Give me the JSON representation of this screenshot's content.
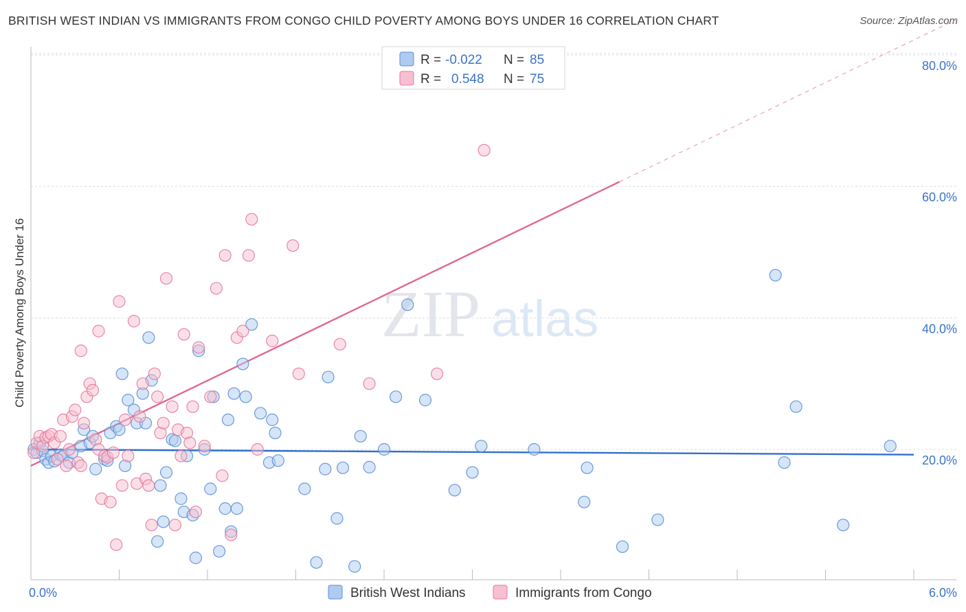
{
  "header": {
    "title": "BRITISH WEST INDIAN VS IMMIGRANTS FROM CONGO CHILD POVERTY AMONG BOYS UNDER 16 CORRELATION CHART",
    "source": "Source: ZipAtlas.com"
  },
  "watermark": {
    "zip": "ZIP",
    "atlas": "atlas"
  },
  "legend": {
    "r_label": "R =",
    "n_label": "N =",
    "rows": [
      {
        "r": "-0.022",
        "n": "85",
        "color": "#aecbf0"
      },
      {
        "r": "0.548",
        "n": "75",
        "color": "#f7bfd0"
      }
    ]
  },
  "bottom_legend": {
    "items": [
      {
        "label": "British West Indians",
        "color": "#aecbf0"
      },
      {
        "label": "Immigrants from Congo",
        "color": "#f7bfd0"
      }
    ]
  },
  "chart_data": {
    "type": "scatter",
    "title": "BRITISH WEST INDIAN VS IMMIGRANTS FROM CONGO CHILD POVERTY AMONG BOYS UNDER 16 CORRELATION CHART",
    "xlabel": "",
    "ylabel": "Child Poverty Among Boys Under 16",
    "xlim": [
      0,
      6.3
    ],
    "ylim": [
      0,
      82
    ],
    "x_tick_labels": [
      {
        "value": 0,
        "label": "0.0%"
      },
      {
        "value": 6.0,
        "label": "6.0%"
      }
    ],
    "y_tick_labels": [
      {
        "value": 20,
        "label": "20.0%"
      },
      {
        "value": 40,
        "label": "40.0%"
      },
      {
        "value": 60,
        "label": "60.0%"
      },
      {
        "value": 80,
        "label": "80.0%"
      }
    ],
    "x_minor_ticks": [
      0.6,
      1.2,
      1.8,
      2.4,
      3.0,
      3.6,
      4.2,
      4.8,
      5.4,
      6.0
    ],
    "grid": true,
    "series": [
      {
        "name": "British West Indians",
        "color": "#aecbf0",
        "stroke": "#5b8fd6",
        "trend": {
          "x": [
            0,
            6.0
          ],
          "y": [
            20.0,
            19.2
          ],
          "color": "#2f6fcc"
        },
        "points": [
          [
            0.02,
            20.0
          ],
          [
            0.04,
            19.5
          ],
          [
            0.06,
            21.0
          ],
          [
            0.08,
            19.8
          ],
          [
            0.1,
            18.5
          ],
          [
            0.12,
            18.0
          ],
          [
            0.14,
            19.0
          ],
          [
            0.16,
            18.2
          ],
          [
            0.2,
            19.2
          ],
          [
            0.22,
            19.0
          ],
          [
            0.26,
            18.0
          ],
          [
            0.28,
            19.5
          ],
          [
            0.34,
            20.5
          ],
          [
            0.36,
            23.0
          ],
          [
            0.4,
            21.0
          ],
          [
            0.42,
            22.0
          ],
          [
            0.44,
            17.0
          ],
          [
            0.5,
            18.5
          ],
          [
            0.52,
            18.3
          ],
          [
            0.54,
            22.5
          ],
          [
            0.58,
            23.5
          ],
          [
            0.6,
            23.0
          ],
          [
            0.62,
            31.5
          ],
          [
            0.64,
            17.5
          ],
          [
            0.66,
            27.5
          ],
          [
            0.7,
            26.0
          ],
          [
            0.72,
            24.0
          ],
          [
            0.76,
            28.5
          ],
          [
            0.78,
            24.0
          ],
          [
            0.8,
            37.0
          ],
          [
            0.82,
            30.5
          ],
          [
            0.86,
            6.0
          ],
          [
            0.88,
            14.5
          ],
          [
            0.9,
            9.0
          ],
          [
            0.92,
            16.5
          ],
          [
            0.96,
            21.5
          ],
          [
            0.98,
            21.3
          ],
          [
            1.02,
            12.5
          ],
          [
            1.04,
            10.5
          ],
          [
            1.06,
            19.0
          ],
          [
            1.1,
            10.0
          ],
          [
            1.12,
            3.5
          ],
          [
            1.14,
            35.0
          ],
          [
            1.18,
            20.0
          ],
          [
            1.22,
            14.0
          ],
          [
            1.24,
            28.0
          ],
          [
            1.28,
            4.5
          ],
          [
            1.32,
            11.0
          ],
          [
            1.34,
            24.5
          ],
          [
            1.36,
            7.5
          ],
          [
            1.38,
            28.5
          ],
          [
            1.4,
            11.0
          ],
          [
            1.44,
            33.0
          ],
          [
            1.46,
            28.0
          ],
          [
            1.5,
            39.0
          ],
          [
            1.56,
            25.5
          ],
          [
            1.62,
            18.0
          ],
          [
            1.64,
            24.5
          ],
          [
            1.66,
            22.5
          ],
          [
            1.68,
            18.3
          ],
          [
            1.86,
            14.0
          ],
          [
            1.94,
            2.8
          ],
          [
            2.0,
            17.0
          ],
          [
            2.02,
            31.0
          ],
          [
            2.08,
            9.5
          ],
          [
            2.12,
            17.2
          ],
          [
            2.2,
            2.2
          ],
          [
            2.24,
            22.0
          ],
          [
            2.3,
            17.3
          ],
          [
            2.4,
            20.0
          ],
          [
            2.48,
            28.0
          ],
          [
            2.56,
            42.0
          ],
          [
            2.68,
            27.5
          ],
          [
            2.88,
            13.8
          ],
          [
            3.0,
            16.5
          ],
          [
            3.06,
            20.5
          ],
          [
            3.42,
            20.0
          ],
          [
            3.76,
            12.0
          ],
          [
            3.78,
            17.2
          ],
          [
            4.02,
            5.2
          ],
          [
            4.26,
            9.3
          ],
          [
            5.06,
            46.5
          ],
          [
            5.12,
            18.0
          ],
          [
            5.2,
            26.5
          ],
          [
            5.52,
            8.5
          ],
          [
            5.84,
            20.5
          ]
        ]
      },
      {
        "name": "Immigrants from Congo",
        "color": "#f7bfd0",
        "stroke": "#e37a9c",
        "trend": {
          "x": [
            0,
            4.0
          ],
          "y": [
            17.5,
            60.7
          ],
          "color": "#e06690"
        },
        "trend_dash": {
          "x": [
            4.0,
            6.3
          ],
          "y": [
            60.7,
            85.5
          ]
        },
        "points": [
          [
            0.02,
            19.5
          ],
          [
            0.04,
            21.0
          ],
          [
            0.06,
            22.0
          ],
          [
            0.08,
            20.5
          ],
          [
            0.1,
            21.8
          ],
          [
            0.12,
            22.0
          ],
          [
            0.14,
            22.3
          ],
          [
            0.16,
            21.0
          ],
          [
            0.18,
            18.5
          ],
          [
            0.2,
            22.0
          ],
          [
            0.22,
            24.5
          ],
          [
            0.24,
            17.5
          ],
          [
            0.26,
            20.0
          ],
          [
            0.28,
            25.0
          ],
          [
            0.3,
            26.0
          ],
          [
            0.32,
            18.0
          ],
          [
            0.34,
            17.5
          ],
          [
            0.36,
            24.0
          ],
          [
            0.38,
            28.0
          ],
          [
            0.4,
            30.0
          ],
          [
            0.42,
            29.0
          ],
          [
            0.44,
            21.5
          ],
          [
            0.46,
            20.0
          ],
          [
            0.48,
            12.5
          ],
          [
            0.5,
            19.0
          ],
          [
            0.52,
            18.8
          ],
          [
            0.54,
            12.0
          ],
          [
            0.56,
            19.5
          ],
          [
            0.58,
            5.5
          ],
          [
            0.6,
            42.5
          ],
          [
            0.62,
            14.5
          ],
          [
            0.64,
            24.5
          ],
          [
            0.66,
            19.0
          ],
          [
            0.7,
            39.5
          ],
          [
            0.72,
            14.8
          ],
          [
            0.74,
            25.0
          ],
          [
            0.76,
            30.0
          ],
          [
            0.78,
            15.5
          ],
          [
            0.8,
            14.5
          ],
          [
            0.82,
            8.5
          ],
          [
            0.84,
            31.5
          ],
          [
            0.86,
            28.0
          ],
          [
            0.88,
            22.5
          ],
          [
            0.9,
            24.0
          ],
          [
            0.92,
            46.0
          ],
          [
            0.96,
            26.5
          ],
          [
            0.98,
            8.5
          ],
          [
            1.0,
            23.0
          ],
          [
            1.02,
            19.0
          ],
          [
            1.04,
            37.5
          ],
          [
            1.06,
            22.5
          ],
          [
            1.08,
            21.0
          ],
          [
            1.1,
            26.5
          ],
          [
            1.12,
            10.5
          ],
          [
            1.14,
            35.5
          ],
          [
            1.18,
            20.5
          ],
          [
            1.22,
            28.0
          ],
          [
            1.26,
            44.5
          ],
          [
            1.3,
            16.0
          ],
          [
            1.32,
            49.5
          ],
          [
            1.36,
            7.0
          ],
          [
            1.4,
            37.0
          ],
          [
            1.44,
            38.0
          ],
          [
            1.48,
            49.5
          ],
          [
            1.5,
            55.0
          ],
          [
            1.54,
            20.0
          ],
          [
            1.64,
            36.5
          ],
          [
            1.78,
            51.0
          ],
          [
            1.82,
            31.5
          ],
          [
            2.1,
            36.0
          ],
          [
            2.3,
            30.0
          ],
          [
            2.76,
            31.5
          ],
          [
            3.08,
            65.5
          ],
          [
            0.34,
            35.0
          ],
          [
            0.46,
            38.0
          ]
        ]
      }
    ]
  }
}
